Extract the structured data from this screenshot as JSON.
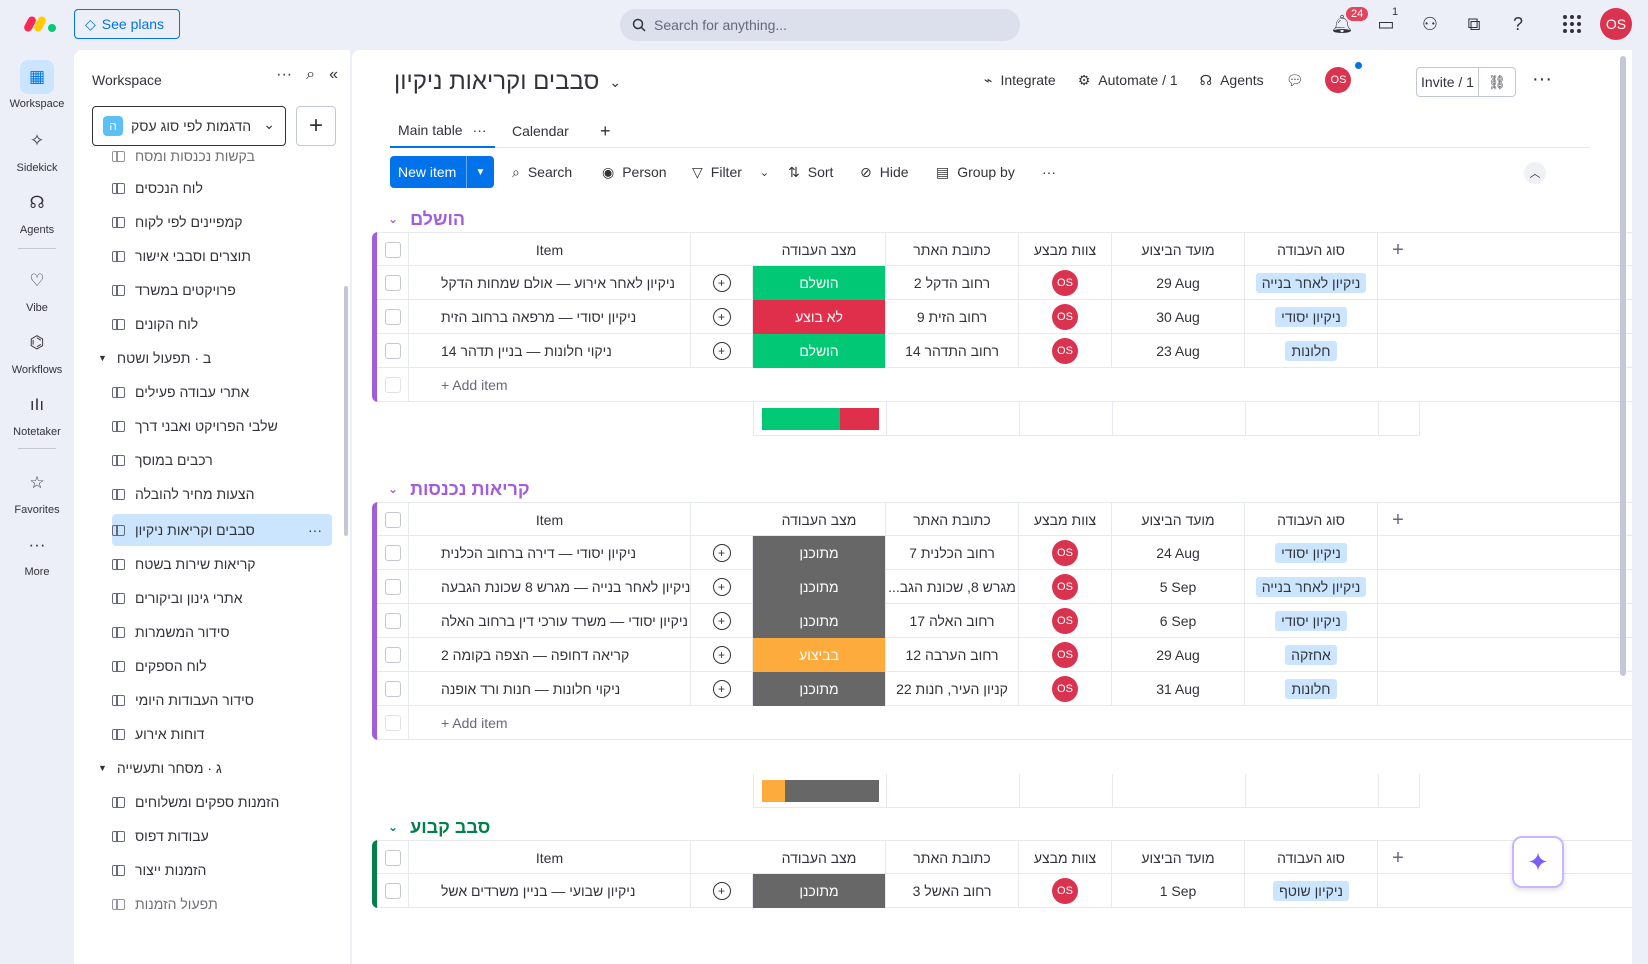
{
  "topbar": {
    "see_plans": "See plans",
    "search_placeholder": "Search for anything...",
    "notifications_count": "24",
    "inbox_count": "1",
    "avatar_initials": "OS"
  },
  "rail": [
    {
      "label": "Workspace",
      "icon": "grid-icon"
    },
    {
      "label": "Sidekick",
      "icon": "sparkle-icon"
    },
    {
      "label": "Agents",
      "icon": "agents-icon"
    },
    {
      "label": "Vibe",
      "icon": "heart-icon"
    },
    {
      "label": "Workflows",
      "icon": "workflows-icon"
    },
    {
      "label": "Notetaker",
      "icon": "waveform-icon"
    },
    {
      "label": "Favorites",
      "icon": "star-icon"
    },
    {
      "label": "More",
      "icon": "more-icon"
    }
  ],
  "sidebar": {
    "title": "Workspace",
    "workspace_name": "הדגמות לפי סוג עסק",
    "workspace_letter": "ה",
    "items": [
      {
        "type": "board",
        "label": "בקשות נכנסות ומסח"
      },
      {
        "type": "board",
        "label": "לוח הנכסים"
      },
      {
        "type": "board",
        "label": "קמפיינים לפי לקוח"
      },
      {
        "type": "board",
        "label": "תוצרים וסבבי אישור"
      },
      {
        "type": "board",
        "label": "פרויקטים במשרד"
      },
      {
        "type": "board",
        "label": "לוח הקונים"
      },
      {
        "type": "folder",
        "label": "ב · תפעול ושטח"
      },
      {
        "type": "board",
        "label": "אתרי עבודה פעילים"
      },
      {
        "type": "board",
        "label": "שלבי הפרויקט ואבני דרך"
      },
      {
        "type": "board",
        "label": "רכבים במוסך"
      },
      {
        "type": "board",
        "label": "הצעות מחיר להובלה"
      },
      {
        "type": "board",
        "label": "סבבים וקריאות ניקיון",
        "active": true
      },
      {
        "type": "board",
        "label": "קריאות שירות בשטח"
      },
      {
        "type": "board",
        "label": "אתרי גינון וביקורים"
      },
      {
        "type": "board",
        "label": "סידור המשמרות"
      },
      {
        "type": "board",
        "label": "לוח הספקים"
      },
      {
        "type": "board",
        "label": "סידור העבודות היומי"
      },
      {
        "type": "board",
        "label": "דוחות אירוע"
      },
      {
        "type": "folder",
        "label": "ג · מסחר ותעשייה"
      },
      {
        "type": "board",
        "label": "הזמנות ספקים ומשלוחים"
      },
      {
        "type": "board",
        "label": "עבודות דפוס"
      },
      {
        "type": "board",
        "label": "הזמנות ייצור"
      },
      {
        "type": "board",
        "label": "תפעול הזמנות"
      }
    ]
  },
  "board": {
    "title": "סבבים וקריאות ניקיון",
    "integrate": "Integrate",
    "automate": "Automate / 1",
    "agents": "Agents",
    "invite": "Invite / 1",
    "tabs": [
      "Main table",
      "Calendar"
    ],
    "toolbar": {
      "new_item": "New item",
      "search": "Search",
      "person": "Person",
      "filter": "Filter",
      "sort": "Sort",
      "hide": "Hide",
      "group_by": "Group by"
    },
    "columns": {
      "item": "Item",
      "status": "מצב העבודה",
      "address": "כתובת האתר",
      "team": "צוות מבצע",
      "date": "מועד הביצוע",
      "type": "סוג העבודה"
    },
    "add_item": "+ Add item",
    "colors": {
      "done": "#00c875",
      "stuck": "#df2f4a",
      "planned": "#676767",
      "working": "#fdab3d",
      "group_purple": "#a25ddc",
      "group_green": "#037f4c"
    },
    "groups": [
      {
        "title": "הושלם",
        "color": "#a25ddc",
        "rows": [
          {
            "item": "ניקיון לאחר אירוע — אולם שמחות הדקל",
            "status": "הושלם",
            "status_color": "#00c875",
            "address": "רחוב הדקל 2",
            "team": "OS",
            "date": "29 Aug",
            "type": "ניקיון לאחר בנייה"
          },
          {
            "item": "ניקיון יסודי — מרפאה ברחוב הזית",
            "status": "לא בוצע",
            "status_color": "#df2f4a",
            "address": "רחוב הזית 9",
            "team": "OS",
            "date": "30 Aug",
            "type": "ניקיון יסודי"
          },
          {
            "item": "ניקוי חלונות — בניין תדהר 14",
            "status": "הושלם",
            "status_color": "#00c875",
            "address": "רחוב התדהר 14",
            "team": "OS",
            "date": "23 Aug",
            "type": "חלונות"
          }
        ],
        "summary": [
          {
            "color": "#00c875",
            "share": 0.667
          },
          {
            "color": "#df2f4a",
            "share": 0.333
          }
        ]
      },
      {
        "title": "קריאות נכנסות",
        "color": "#a25ddc",
        "rows": [
          {
            "item": "ניקיון יסודי — דירה ברחוב הכלנית",
            "status": "מתוכנן",
            "status_color": "#676767",
            "address": "רחוב הכלנית 7",
            "team": "OS",
            "date": "24 Aug",
            "type": "ניקיון יסודי"
          },
          {
            "item": "ניקיון לאחר בנייה — מגרש 8 שכונת הגבעה",
            "status": "מתוכנן",
            "status_color": "#676767",
            "address": "מגרש 8, שכונת הגב...",
            "team": "OS",
            "date": "5 Sep",
            "type": "ניקיון לאחר בנייה"
          },
          {
            "item": "ניקיון יסודי — משרד עורכי דין ברחוב האלה",
            "status": "מתוכנן",
            "status_color": "#676767",
            "address": "רחוב האלה 17",
            "team": "OS",
            "date": "6 Sep",
            "type": "ניקיון יסודי"
          },
          {
            "item": "קריאה דחופה — הצפה בקומה 2",
            "status": "בביצוע",
            "status_color": "#fdab3d",
            "address": "רחוב הערבה 12",
            "team": "OS",
            "date": "29 Aug",
            "type": "אחזקה"
          },
          {
            "item": "ניקוי חלונות — חנות ורד אופנה",
            "status": "מתוכנן",
            "status_color": "#676767",
            "address": "קניון העיר, חנות 22",
            "team": "OS",
            "date": "31 Aug",
            "type": "חלונות"
          }
        ],
        "summary": [
          {
            "color": "#fdab3d",
            "share": 0.2
          },
          {
            "color": "#676767",
            "share": 0.8
          }
        ]
      },
      {
        "title": "סבב קבוע",
        "color": "#037f4c",
        "rows": [
          {
            "item": "ניקיון שבועי — בניין משרדים אשל",
            "status": "מתוכנן",
            "status_color": "#676767",
            "address": "רחוב האשל 3",
            "team": "OS",
            "date": "1 Sep",
            "type": "ניקיון שוטף"
          }
        ],
        "summary": []
      }
    ]
  }
}
